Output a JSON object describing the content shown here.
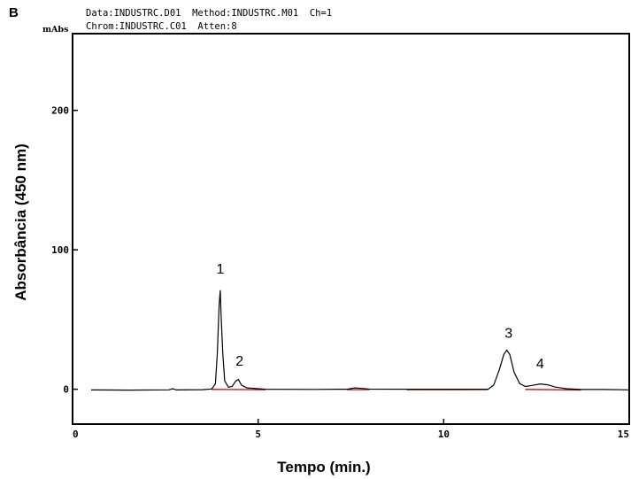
{
  "panel_label": "B",
  "header": {
    "line1": "Data:INDUSTRC.D01  Method:INDUSTRC.M01  Ch=1",
    "line2": "Chrom:INDUSTRC.C01  Atten:8",
    "unit": "mAbs"
  },
  "chart_data": {
    "type": "line",
    "title": "",
    "xlabel": "Tempo (min.)",
    "ylabel": "Absorbância  (450 nm)",
    "xlim": [
      0,
      15
    ],
    "ylim": [
      -25,
      255
    ],
    "x_ticks": [
      0,
      5,
      10,
      15
    ],
    "x_tick_labels": [
      "0",
      "5",
      "10",
      "15"
    ],
    "y_ticks": [
      0,
      100,
      200
    ],
    "y_tick_labels": [
      "0",
      "100",
      "200"
    ],
    "grid": false,
    "colors": {
      "trace": "#000000",
      "baseline": "#cc0000"
    },
    "series": [
      {
        "points": [
          [
            0.5,
            -0.5
          ],
          [
            1.5,
            -0.6
          ],
          [
            2.6,
            -0.4
          ],
          [
            2.7,
            0.4
          ],
          [
            2.8,
            -0.5
          ],
          [
            3.5,
            -0.3
          ],
          [
            3.75,
            0.2
          ],
          [
            3.85,
            4
          ],
          [
            3.9,
            25
          ],
          [
            3.95,
            60
          ],
          [
            3.98,
            71
          ],
          [
            4.0,
            55
          ],
          [
            4.05,
            25
          ],
          [
            4.1,
            6
          ],
          [
            4.2,
            1.5
          ],
          [
            4.3,
            2
          ],
          [
            4.4,
            6
          ],
          [
            4.47,
            7
          ],
          [
            4.55,
            3
          ],
          [
            4.7,
            1
          ],
          [
            5.2,
            0
          ],
          [
            6.5,
            -0.1
          ],
          [
            7.4,
            0
          ],
          [
            7.6,
            1
          ],
          [
            7.8,
            0.6
          ],
          [
            8.0,
            0.1
          ],
          [
            9.5,
            0
          ],
          [
            10.5,
            0
          ],
          [
            11.2,
            0.1
          ],
          [
            11.35,
            3
          ],
          [
            11.5,
            14
          ],
          [
            11.62,
            25
          ],
          [
            11.7,
            28
          ],
          [
            11.78,
            25
          ],
          [
            11.9,
            12
          ],
          [
            12.05,
            4
          ],
          [
            12.2,
            2
          ],
          [
            12.4,
            2.8
          ],
          [
            12.6,
            3.8
          ],
          [
            12.8,
            3.2
          ],
          [
            13.0,
            1.6
          ],
          [
            13.3,
            0.4
          ],
          [
            13.7,
            -0.2
          ],
          [
            14.3,
            -0.2
          ],
          [
            15.0,
            -0.4
          ]
        ]
      }
    ],
    "baseline_segments": [
      [
        [
          3.75,
          0.2
        ],
        [
          5.2,
          0
        ]
      ],
      [
        [
          7.4,
          0
        ],
        [
          8.0,
          0.1
        ]
      ],
      [
        [
          9.0,
          0
        ],
        [
          11.2,
          0.1
        ]
      ],
      [
        [
          12.2,
          0.2
        ],
        [
          13.7,
          -0.2
        ]
      ]
    ],
    "annotations": [
      {
        "text": "1",
        "x": 3.98,
        "y": 83
      },
      {
        "text": "2",
        "x": 4.5,
        "y": 17
      },
      {
        "text": "3",
        "x": 11.75,
        "y": 37
      },
      {
        "text": "4",
        "x": 12.6,
        "y": 15
      }
    ]
  }
}
